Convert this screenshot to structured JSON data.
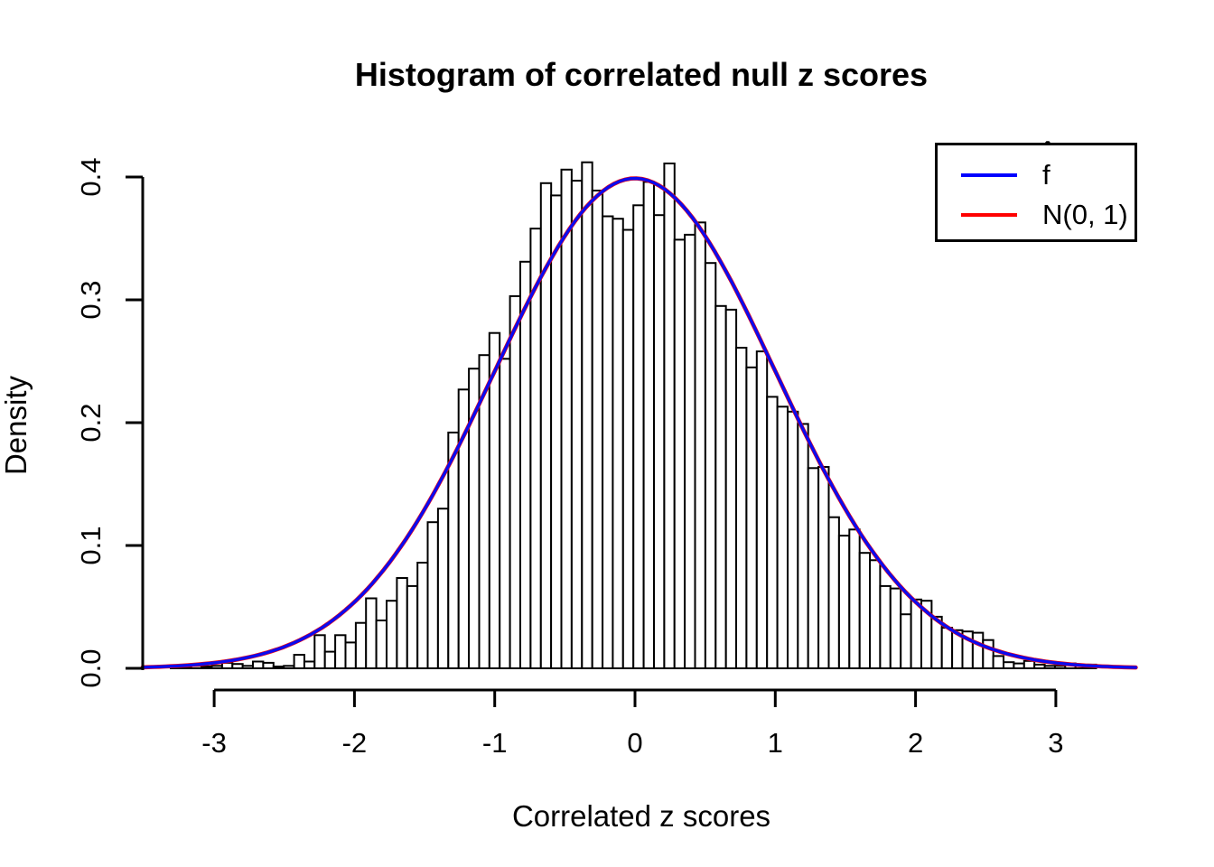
{
  "title": "Histogram of correlated null z scores",
  "axes": {
    "x": {
      "label": "Correlated z scores",
      "tick_values": [
        -3,
        -2,
        -1,
        0,
        1,
        2,
        3
      ],
      "tick_labels": [
        "-3",
        "-2",
        "-1",
        "0",
        "1",
        "2",
        "3"
      ]
    },
    "y": {
      "label": "Density",
      "tick_values": [
        0.0,
        0.1,
        0.2,
        0.3,
        0.4
      ],
      "tick_labels": [
        "0.0",
        "0.1",
        "0.2",
        "0.3",
        "0.4"
      ]
    }
  },
  "legend": {
    "items": [
      {
        "base": "f",
        "accent": "ˆ",
        "color": "#0000ff"
      },
      {
        "base": "N(0, 1)",
        "accent": "",
        "color": "#ff0000"
      }
    ]
  },
  "colors": {
    "bar_fill": "#ffffff",
    "bar_stroke": "#000000",
    "axis": "#000000",
    "fhat_curve": "#0b0bee",
    "normal_curve": "#ff0000"
  },
  "chart_data": {
    "type": "bar",
    "subtype": "histogram-with-density-curves",
    "title": "Histogram of correlated null z scores",
    "xlabel": "Correlated z scores",
    "ylabel": "Density",
    "xlim": [
      -3.6,
      3.65
    ],
    "ylim": [
      0.0,
      0.42
    ],
    "grid": false,
    "legend_position": "top-right",
    "bins": {
      "left_edge": -3.31,
      "bin_width": 0.0733,
      "densities": [
        0.0015,
        0.001,
        0.002,
        0.0015,
        0.002,
        0.0045,
        0.0035,
        0.002,
        0.0055,
        0.0045,
        0.0015,
        0.002,
        0.011,
        0.0055,
        0.027,
        0.0135,
        0.027,
        0.021,
        0.037,
        0.057,
        0.039,
        0.055,
        0.0735,
        0.067,
        0.086,
        0.119,
        0.13,
        0.192,
        0.227,
        0.244,
        0.255,
        0.273,
        0.252,
        0.303,
        0.331,
        0.358,
        0.395,
        0.385,
        0.406,
        0.397,
        0.412,
        0.389,
        0.368,
        0.366,
        0.357,
        0.377,
        0.396,
        0.369,
        0.411,
        0.349,
        0.353,
        0.363,
        0.33,
        0.295,
        0.292,
        0.261,
        0.245,
        0.258,
        0.221,
        0.213,
        0.209,
        0.199,
        0.163,
        0.164,
        0.123,
        0.108,
        0.113,
        0.094,
        0.088,
        0.067,
        0.065,
        0.044,
        0.056,
        0.055,
        0.042,
        0.033,
        0.031,
        0.03,
        0.029,
        0.023,
        0.01,
        0.005,
        0.004,
        0.006,
        0.003,
        0.002,
        0.002,
        0.004,
        0.002,
        0.003
      ]
    },
    "curves": [
      {
        "name": "N(0, 1)",
        "distribution": "normal-pdf",
        "mean": 0,
        "sd": 1,
        "peak_density": 0.3989,
        "color": "#ff0000",
        "z_range": [
          -3.51,
          3.6
        ]
      },
      {
        "name": "f-hat",
        "distribution": "normal-pdf",
        "mean": 0,
        "sd": 1,
        "peak_density": 0.3989,
        "color": "#0b0bee",
        "z_range": [
          -3.51,
          3.6
        ]
      }
    ]
  }
}
